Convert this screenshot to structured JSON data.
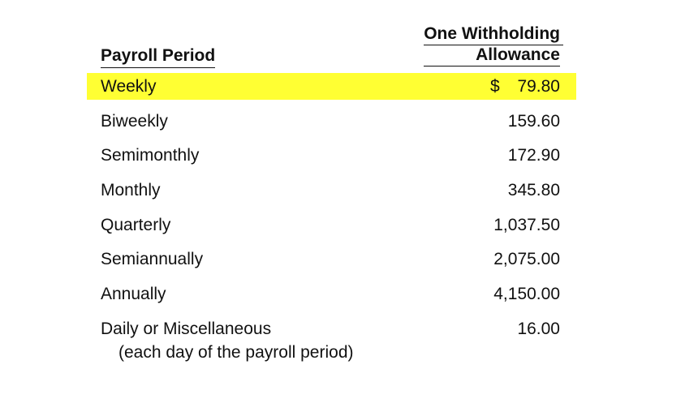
{
  "header": {
    "period_label": "Payroll Period",
    "allowance_line1": "One Withholding",
    "allowance_line2": "Allowance"
  },
  "highlight_color": "#ffff33",
  "rows": [
    {
      "period": "Weekly",
      "currency": "$",
      "amount": "79.80",
      "highlighted": true
    },
    {
      "period": "Biweekly",
      "amount": "159.60"
    },
    {
      "period": "Semimonthly",
      "amount": "172.90"
    },
    {
      "period": "Monthly",
      "amount": "345.80"
    },
    {
      "period": "Quarterly",
      "amount": "1,037.50"
    },
    {
      "period": "Semiannually",
      "amount": "2,075.00"
    },
    {
      "period": "Annually",
      "amount": "4,150.00"
    },
    {
      "period": "Daily or Miscellaneous",
      "amount": "16.00",
      "note": "(each day of the payroll period)"
    }
  ]
}
